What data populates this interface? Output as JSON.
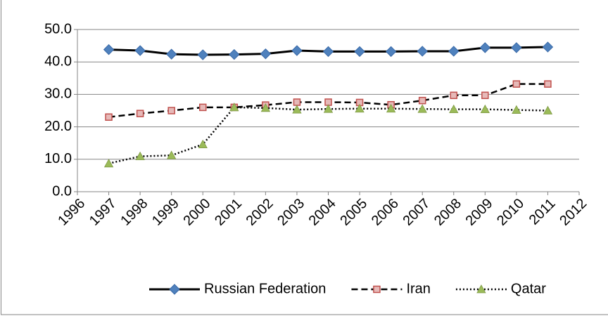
{
  "chart_data": {
    "type": "line",
    "x": [
      1997,
      1998,
      1999,
      2000,
      2001,
      2002,
      2003,
      2004,
      2005,
      2006,
      2007,
      2008,
      2009,
      2010,
      2011
    ],
    "series": [
      {
        "name": "Russian Federation",
        "color": "#000000",
        "marker_color": "#4f81bd",
        "marker": "diamond",
        "dash": "solid",
        "values": [
          43.8,
          43.5,
          42.4,
          42.2,
          42.3,
          42.5,
          43.5,
          43.2,
          43.2,
          43.2,
          43.3,
          43.3,
          44.4,
          44.4,
          44.6
        ]
      },
      {
        "name": "Iran",
        "color": "#000000",
        "marker_color": "#c0504d",
        "marker": "square",
        "dash": "dashed",
        "values": [
          23.0,
          24.1,
          25.0,
          26.0,
          26.0,
          26.7,
          27.6,
          27.6,
          27.5,
          26.8,
          28.1,
          29.7,
          29.7,
          33.2,
          33.2
        ]
      },
      {
        "name": "Qatar",
        "color": "#000000",
        "marker_color": "#9bbb59",
        "marker": "triangle",
        "dash": "dotted",
        "values": [
          8.7,
          10.9,
          11.2,
          14.6,
          26.0,
          25.8,
          25.3,
          25.5,
          25.6,
          25.6,
          25.5,
          25.4,
          25.4,
          25.2,
          25.0
        ]
      }
    ],
    "xlim": [
      1996,
      2012
    ],
    "xticks": [
      1996,
      1997,
      1998,
      1999,
      2000,
      2001,
      2002,
      2003,
      2004,
      2005,
      2006,
      2007,
      2008,
      2009,
      2010,
      2011,
      2012
    ],
    "ylim": [
      0,
      50
    ],
    "yticks": [
      {
        "value": 0,
        "label": "0.0"
      },
      {
        "value": 10,
        "label": "10.0"
      },
      {
        "value": 20,
        "label": "20.0"
      },
      {
        "value": 30,
        "label": "30.0"
      },
      {
        "value": 40,
        "label": "40.0"
      },
      {
        "value": 50,
        "label": "50.0"
      }
    ],
    "grid": true,
    "legend": "bottom"
  }
}
